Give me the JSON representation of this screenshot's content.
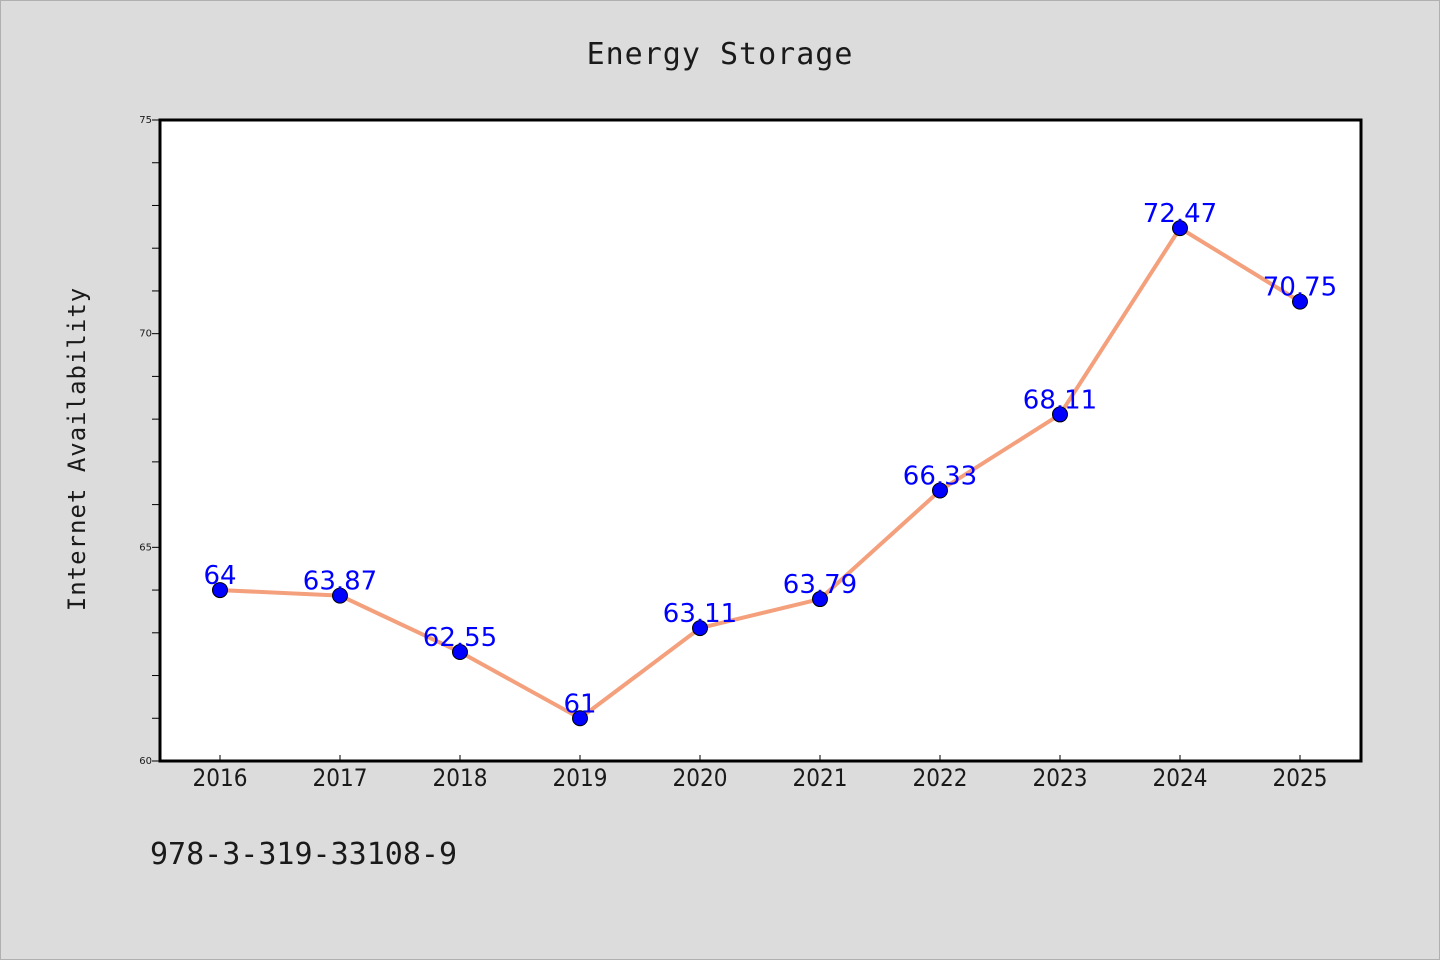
{
  "chart_data": {
    "type": "line",
    "title": "Energy Storage",
    "xlabel": "",
    "ylabel": "Internet Availability",
    "categories": [
      "2016",
      "2017",
      "2018",
      "2019",
      "2020",
      "2021",
      "2022",
      "2023",
      "2024",
      "2025"
    ],
    "series": [
      {
        "values": [
          64,
          63.87,
          62.55,
          61,
          63.11,
          63.79,
          66.33,
          68.11,
          72.47,
          70.75
        ],
        "data_labels": [
          "64",
          "63.87",
          "62.55",
          "61",
          "63.11",
          "63.79",
          "66.33",
          "68.11",
          "72.47",
          "70.75"
        ],
        "line_color": "#f4a07c",
        "marker_color": "#0000ff"
      }
    ],
    "ylim": [
      60,
      75
    ],
    "y_major_ticks": [
      60,
      65,
      70,
      75
    ],
    "y_minor_step": 1,
    "grid": false,
    "legend": "none"
  },
  "footer": {
    "code": "978-3-319-33108-9"
  },
  "colors": {
    "background": "#dcdcdc",
    "plot_background": "#ffffff",
    "line": "#f4a07c",
    "marker": "#0000ff",
    "data_label": "#0000ff"
  }
}
